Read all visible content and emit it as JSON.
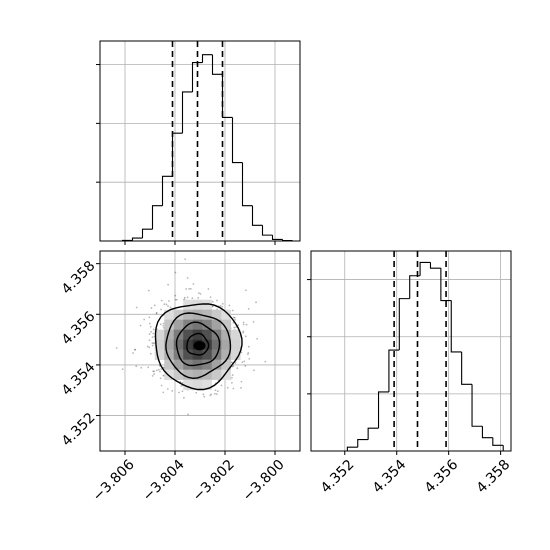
{
  "chart_data": [
    {
      "type": "histogram",
      "panel": "top-left",
      "variable_index": 0,
      "xlim": [
        -3.807,
        -3.799
      ],
      "bin_edges": [
        -3.8061,
        -3.8057,
        -3.8053,
        -3.8049,
        -3.8045,
        -3.8041,
        -3.8037,
        -3.8033,
        -3.8029,
        -3.8025,
        -3.8021,
        -3.8017,
        -3.8013,
        -3.8009,
        -3.8005,
        -3.8001,
        -3.7997,
        -3.7993
      ],
      "counts": [
        0.3,
        1.5,
        6,
        18,
        33,
        55,
        76,
        91,
        95,
        85,
        63,
        40,
        18,
        8,
        3,
        0.8,
        0.2
      ],
      "ymax": 102,
      "quantiles": [
        -3.8041,
        -3.8031,
        -3.8021
      ],
      "ytick_counts": [
        30,
        60,
        90
      ],
      "grid": true
    },
    {
      "type": "heatmap",
      "panel": "bottom-left",
      "xlim": [
        -3.807,
        -3.799
      ],
      "ylim": [
        4.3506,
        4.3585
      ],
      "xticks": [
        "−3.806",
        "−3.804",
        "−3.802",
        "−3.800"
      ],
      "yticks": [
        "4.352",
        "4.354",
        "4.356",
        "4.358"
      ],
      "center": [
        -3.8031,
        4.3548
      ],
      "sigma": [
        0.00086,
        0.00084
      ],
      "contour_sigma_levels": [
        0.5,
        1.0,
        1.5,
        2.0
      ],
      "grid": true
    },
    {
      "type": "histogram",
      "panel": "bottom-right",
      "variable_index": 1,
      "xlim": [
        4.3507,
        4.3584
      ],
      "bin_edges": [
        4.3521,
        4.3525,
        4.3529,
        4.3533,
        4.3537,
        4.3541,
        4.3545,
        4.3549,
        4.3553,
        4.3557,
        4.3561,
        4.3565,
        4.3569,
        4.3573,
        4.3577,
        4.3581
      ],
      "counts": [
        2,
        6,
        12,
        31,
        53,
        80,
        92,
        99,
        96,
        79,
        52,
        35,
        13,
        7,
        3
      ],
      "ymax": 105,
      "quantiles": [
        4.3539,
        4.3548,
        4.3559
      ],
      "xticks": [
        "4.352",
        "4.354",
        "4.356",
        "4.358"
      ],
      "ytick_counts": [
        30,
        60,
        90
      ],
      "grid": true
    }
  ]
}
